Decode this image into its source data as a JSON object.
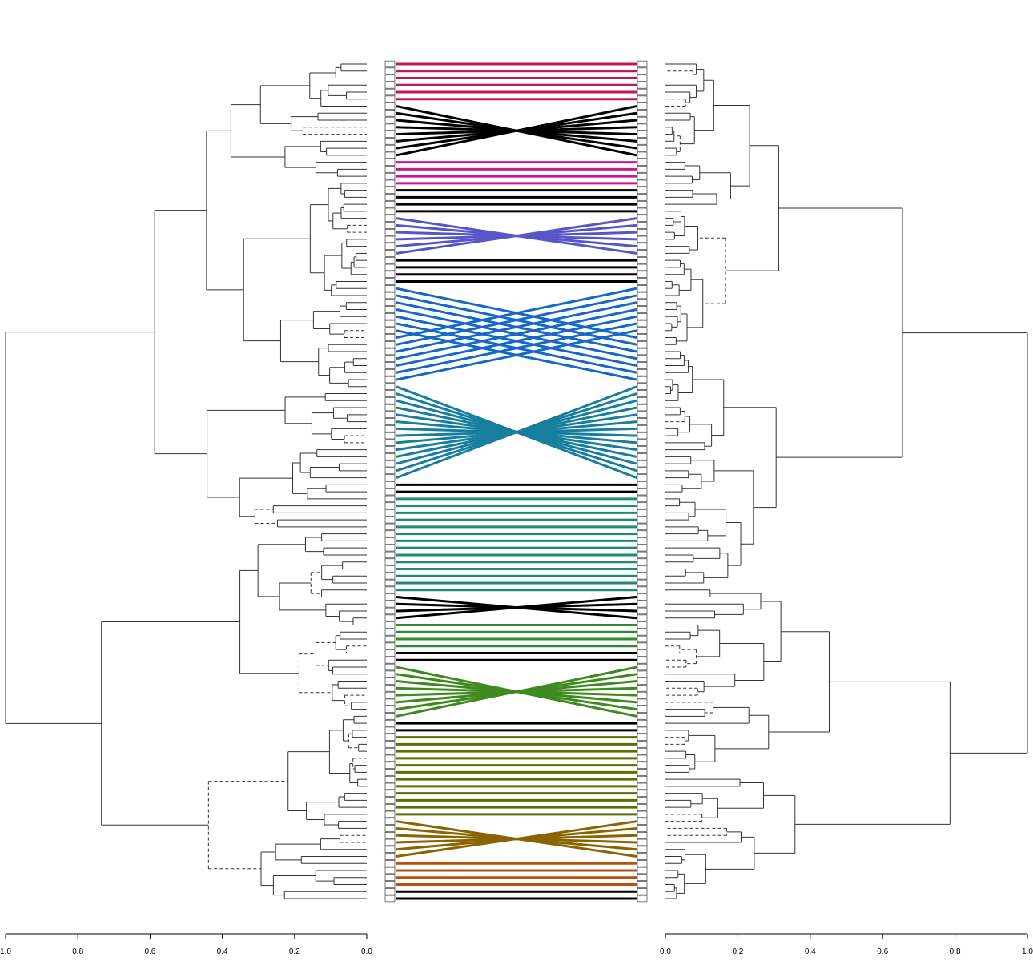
{
  "chart_data": {
    "type": "tanglegram",
    "leaf_count": 120,
    "left_tree": {
      "axis": {
        "range": [
          1.0,
          0.0
        ],
        "ticks": [
          "1.0",
          "0.8",
          "0.6",
          "0.4",
          "0.2",
          "0.0"
        ]
      },
      "root_height": 1.0
    },
    "right_tree": {
      "axis": {
        "range": [
          0.0,
          1.0
        ],
        "ticks": [
          "0.0",
          "0.2",
          "0.4",
          "0.6",
          "0.8",
          "1.0"
        ]
      },
      "root_height": 1.0
    },
    "connector_groups": [
      {
        "color": "#C2185B",
        "leaves": [
          0,
          6
        ]
      },
      {
        "color": "#000000",
        "leaves": [
          6,
          14
        ]
      },
      {
        "color": "#C7189B",
        "leaves": [
          14,
          18
        ]
      },
      {
        "color": "#000000",
        "leaves": [
          18,
          22
        ]
      },
      {
        "color": "#5656C8",
        "leaves": [
          22,
          28
        ]
      },
      {
        "color": "#000000",
        "leaves": [
          28,
          32
        ]
      },
      {
        "color": "#1469C8",
        "leaves": [
          32,
          46
        ]
      },
      {
        "color": "#177E9E",
        "leaves": [
          46,
          60
        ]
      },
      {
        "color": "#000000",
        "leaves": [
          60,
          62
        ]
      },
      {
        "color": "#1E8A7A",
        "leaves": [
          62,
          76
        ]
      },
      {
        "color": "#000000",
        "leaves": [
          76,
          80
        ]
      },
      {
        "color": "#2E8B2E",
        "leaves": [
          80,
          84
        ]
      },
      {
        "color": "#000000",
        "leaves": [
          84,
          86
        ]
      },
      {
        "color": "#3F8A1E",
        "leaves": [
          86,
          94
        ]
      },
      {
        "color": "#000000",
        "leaves": [
          94,
          96
        ]
      },
      {
        "color": "#5E6E00",
        "leaves": [
          96,
          108
        ]
      },
      {
        "color": "#8A6400",
        "leaves": [
          108,
          114
        ]
      },
      {
        "color": "#B5520E",
        "leaves": [
          114,
          118
        ]
      },
      {
        "color": "#000000",
        "leaves": [
          118,
          120
        ]
      }
    ]
  }
}
